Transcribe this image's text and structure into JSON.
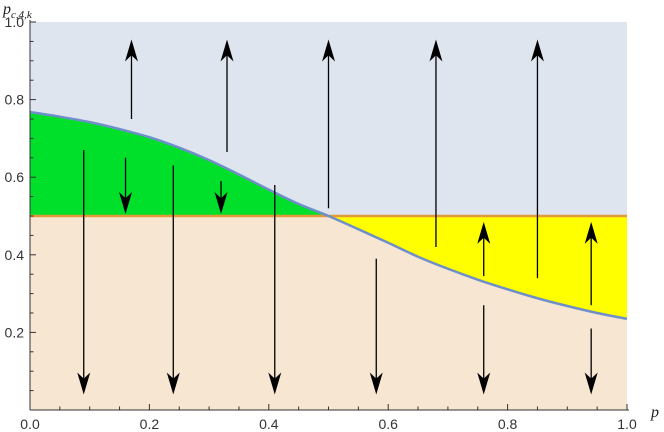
{
  "chart_data": {
    "type": "area",
    "xlabel": "p",
    "ylabel": {
      "base": "p",
      "subscript": "c,4,k"
    },
    "xlim": [
      0,
      1
    ],
    "ylim": [
      0,
      1
    ],
    "x_ticks": [
      0.0,
      0.2,
      0.4,
      0.6,
      0.8,
      1.0
    ],
    "x_tick_labels": [
      "0.0",
      "0.2",
      "0.4",
      "0.6",
      "0.8",
      "1.0"
    ],
    "y_ticks": [
      0.2,
      0.4,
      0.6,
      0.8,
      1.0
    ],
    "y_tick_labels": [
      "0.2",
      "0.4",
      "0.6",
      "0.8",
      "1.0"
    ],
    "grid": false,
    "horizontal_line": {
      "y": 0.5,
      "color": "#e59a3a"
    },
    "curve": {
      "color": "#6e8fc8",
      "x": [
        0.0,
        0.05,
        0.1,
        0.15,
        0.2,
        0.25,
        0.3,
        0.35,
        0.4,
        0.45,
        0.5,
        0.55,
        0.6,
        0.65,
        0.7,
        0.75,
        0.8,
        0.85,
        0.9,
        0.95,
        1.0
      ],
      "y": [
        0.768,
        0.756,
        0.742,
        0.724,
        0.703,
        0.676,
        0.644,
        0.607,
        0.568,
        0.531,
        0.5,
        0.466,
        0.431,
        0.395,
        0.364,
        0.336,
        0.311,
        0.288,
        0.268,
        0.25,
        0.235
      ]
    },
    "regions": {
      "upper_color": "#dfe5ef",
      "lower_color": "#f7e6d2",
      "green_color": "#00e02a",
      "yellow_color": "#ffff00"
    },
    "arrows": [
      {
        "x": 0.17,
        "y_from": 0.75,
        "y_to": 0.955
      },
      {
        "x": 0.33,
        "y_from": 0.665,
        "y_to": 0.955
      },
      {
        "x": 0.5,
        "y_from": 0.52,
        "y_to": 0.955
      },
      {
        "x": 0.68,
        "y_from": 0.42,
        "y_to": 0.955
      },
      {
        "x": 0.85,
        "y_from": 0.34,
        "y_to": 0.955
      },
      {
        "x": 0.16,
        "y_from": 0.65,
        "y_to": 0.505
      },
      {
        "x": 0.32,
        "y_from": 0.59,
        "y_to": 0.505
      },
      {
        "x": 0.09,
        "y_from": 0.67,
        "y_to": 0.04
      },
      {
        "x": 0.24,
        "y_from": 0.63,
        "y_to": 0.04
      },
      {
        "x": 0.41,
        "y_from": 0.58,
        "y_to": 0.04
      },
      {
        "x": 0.58,
        "y_from": 0.39,
        "y_to": 0.04
      },
      {
        "x": 0.76,
        "y_from": 0.27,
        "y_to": 0.04
      },
      {
        "x": 0.94,
        "y_from": 0.21,
        "y_to": 0.04
      },
      {
        "x": 0.76,
        "y_from": 0.345,
        "y_to": 0.485
      },
      {
        "x": 0.94,
        "y_from": 0.27,
        "y_to": 0.485
      }
    ]
  }
}
